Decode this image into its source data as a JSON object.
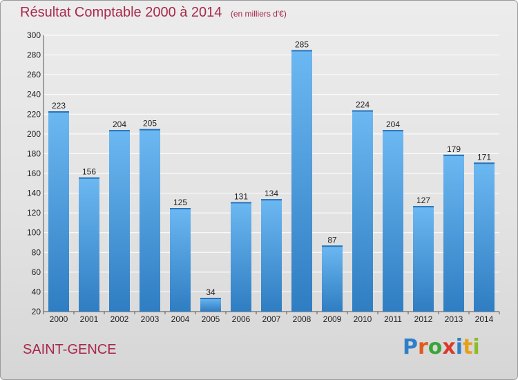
{
  "title": "Résultat Comptable 2000 à 2014",
  "subtitle": "(en milliers d'€)",
  "commune": "SAINT-GENCE",
  "brand": {
    "letters": [
      "P",
      "r",
      "o",
      "x",
      "i",
      "t",
      "i"
    ],
    "colors": [
      "#2e7fc9",
      "#e05a20",
      "#3aa537",
      "#d93a2b",
      "#2e7fc9",
      "#e5a01b",
      "#8dbb2a"
    ]
  },
  "colors": {
    "bar": "#4d9fe0",
    "bar_dark": "#2f7dc2",
    "bar_light": "#6cb8f2",
    "title": "#a8294a",
    "grid": "#ffffff"
  },
  "chart_data": {
    "type": "bar",
    "title": "Résultat Comptable 2000 à 2014",
    "subtitle": "(en milliers d'€)",
    "categories": [
      "2000",
      "2001",
      "2002",
      "2003",
      "2004",
      "2005",
      "2006",
      "2007",
      "2008",
      "2009",
      "2010",
      "2011",
      "2012",
      "2013",
      "2014"
    ],
    "values": [
      223,
      156,
      204,
      205,
      125,
      34,
      131,
      134,
      285,
      87,
      224,
      204,
      127,
      179,
      171
    ],
    "data_labels": [
      "223",
      "156",
      "204",
      "205",
      "125",
      "34",
      "131",
      "134",
      "285",
      "87",
      "224",
      "204",
      "127",
      "179",
      "171"
    ],
    "ylim": [
      20,
      300
    ],
    "yticks": [
      20,
      40,
      60,
      80,
      100,
      120,
      140,
      160,
      180,
      200,
      220,
      240,
      260,
      280,
      300
    ],
    "grid": true,
    "legend": "none",
    "xlabel": "",
    "ylabel": ""
  }
}
